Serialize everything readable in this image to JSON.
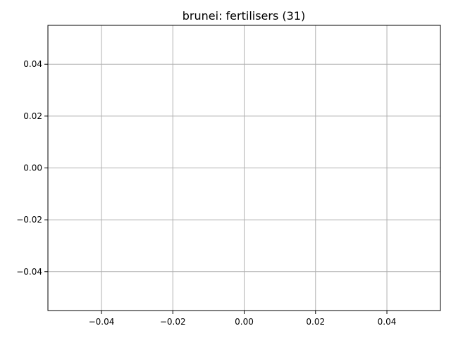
{
  "chart_data": {
    "type": "line",
    "title": "brunei: fertilisers (31)",
    "xlabel": "",
    "ylabel": "",
    "xlim": [
      -0.055,
      0.055
    ],
    "ylim": [
      -0.055,
      0.055
    ],
    "x_ticks": [
      -0.04,
      -0.02,
      0.0,
      0.02,
      0.04
    ],
    "x_tick_labels": [
      "−0.04",
      "−0.02",
      "0.00",
      "0.02",
      "0.04"
    ],
    "y_ticks": [
      -0.04,
      -0.02,
      0.0,
      0.02,
      0.04
    ],
    "y_tick_labels": [
      "−0.04",
      "−0.02",
      "0.00",
      "0.02",
      "0.04"
    ],
    "grid": true,
    "series": [],
    "colors": {
      "grid": "#b0b0b0",
      "axes": "#000000",
      "text": "#000000",
      "background": "#ffffff"
    }
  }
}
